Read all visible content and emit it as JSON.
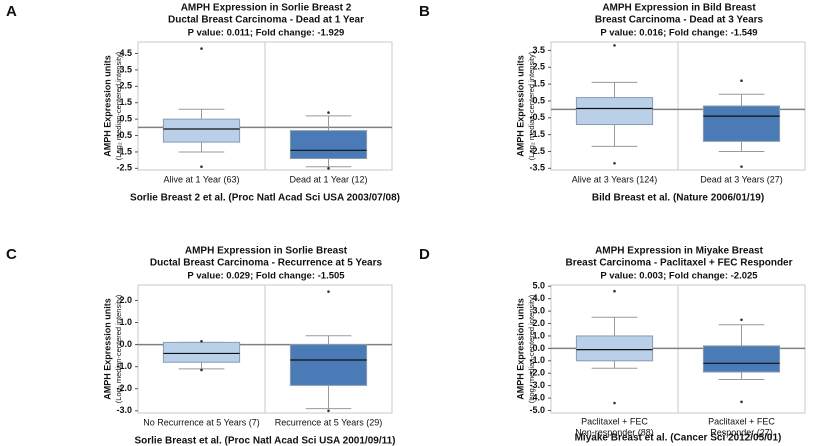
{
  "chart_data": [
    {
      "type": "box",
      "panel": "A",
      "title": "AMPH Expression in Sorlie Breast 2",
      "subtitle": "Ductal Breast Carcinoma - Dead at 1 Year",
      "stats": "P value: 0.011;  Fold change: -1.929",
      "ylabel": "AMPH Expression units",
      "ylabel2": "(Log₂ median-centered intensity)",
      "footer": "Sorlie Breast 2 et al. (Proc Natl Acad Sci USA 2003/07/08)",
      "categories": [
        "Alive at 1 Year (63)",
        "Dead at 1 Year (12)"
      ],
      "ylim": [
        -2.6,
        5.2
      ],
      "yticks": [
        4.5,
        3.5,
        2.5,
        1.5,
        0.5,
        -0.5,
        -1.5,
        -2.5
      ],
      "refline": 0,
      "boxes": [
        {
          "color": "#b9d0e8",
          "whisker_low": -1.5,
          "q1": -0.9,
          "median": -0.1,
          "q3": 0.5,
          "whisker_high": 1.1,
          "outliers": [
            4.8,
            -2.4
          ]
        },
        {
          "color": "#4a7bb7",
          "whisker_low": -2.4,
          "q1": -1.9,
          "median": -1.4,
          "q3": -0.2,
          "whisker_high": 0.7,
          "outliers": [
            0.9,
            -2.5
          ]
        }
      ]
    },
    {
      "type": "box",
      "panel": "B",
      "title": "AMPH Expression in Bild Breast",
      "subtitle": "Breast Carcinoma - Dead at 3 Years",
      "stats": "P value: 0.016;  Fold change: -1.549",
      "ylabel": "AMPH Expression units",
      "ylabel2": "(Log₂ median-centered intensity)",
      "footer": "Bild Breast et al. (Nature 2006/01/19)",
      "categories": [
        "Alive at 3 Years (124)",
        "Dead at 3 Years (27)"
      ],
      "ylim": [
        -3.6,
        4.0
      ],
      "yticks": [
        3.5,
        2.5,
        1.5,
        0.5,
        -0.5,
        -1.5,
        -2.5,
        -3.5
      ],
      "refline": 0,
      "boxes": [
        {
          "color": "#b9d0e8",
          "whisker_low": -2.2,
          "q1": -0.9,
          "median": 0.05,
          "q3": 0.7,
          "whisker_high": 1.6,
          "outliers": [
            3.8,
            -3.2
          ]
        },
        {
          "color": "#4a7bb7",
          "whisker_low": -2.5,
          "q1": -1.9,
          "median": -0.4,
          "q3": 0.2,
          "whisker_high": 0.9,
          "outliers": [
            1.7,
            -3.4
          ]
        }
      ]
    },
    {
      "type": "box",
      "panel": "C",
      "title": "AMPH Expression in Sorlie Breast",
      "subtitle": "Ductal Breast Carcinoma - Recurrence at 5 Years",
      "stats": "P value: 0.029;  Fold change: -1.505",
      "ylabel": "AMPH Expression units",
      "ylabel2": "(Log₂ median-centered intensity)",
      "footer": "Sorlie Breast et al. (Proc Natl Acad Sci USA 2001/09/11)",
      "categories": [
        "No Recurrence at 5 Years (7)",
        "Recurrence at 5 Years (29)"
      ],
      "ylim": [
        -3.1,
        2.7
      ],
      "yticks": [
        {
          "value": 2,
          "label": "2.0"
        },
        {
          "value": 1,
          "label": "1.0"
        },
        {
          "value": 0,
          "label": "0.0"
        },
        {
          "value": -1,
          "label": "-1.0"
        },
        {
          "value": -2,
          "label": "-2.0"
        },
        {
          "value": -3,
          "label": "-3.0"
        }
      ],
      "refline": 0,
      "boxes": [
        {
          "color": "#b9d0e8",
          "whisker_low": -1.1,
          "q1": -0.8,
          "median": -0.4,
          "q3": 0.1,
          "whisker_high": 0.1,
          "outliers": [
            0.15,
            -1.15
          ]
        },
        {
          "color": "#4a7bb7",
          "whisker_low": -2.9,
          "q1": -1.85,
          "median": -0.7,
          "q3": 0.0,
          "whisker_high": 0.4,
          "outliers": [
            2.4,
            -3.0
          ]
        }
      ]
    },
    {
      "type": "box",
      "panel": "D",
      "title": "AMPH Expression in Miyake Breast",
      "subtitle": "Breast Carcinoma - Paclitaxel + FEC Responder",
      "stats": "P value: 0.003;  Fold change: -2.025",
      "ylabel": "AMPH Expression units",
      "ylabel2": "(Log₂ median-centered intensity)",
      "footer": "Miyake Breast et al. (Cancer Sci 2012/05/01)",
      "categories": [
        [
          "Paclitaxel + FEC",
          "Non-responder (88)"
        ],
        [
          "Paclitaxel + FEC",
          "Responder (27)"
        ]
      ],
      "ylim": [
        -5.2,
        5.1
      ],
      "yticks": [
        {
          "value": 5,
          "label": "5.0"
        },
        {
          "value": 4,
          "label": "4.0"
        },
        {
          "value": 3,
          "label": "3.0"
        },
        {
          "value": 2,
          "label": "2.0"
        },
        {
          "value": 1,
          "label": "1.0"
        },
        {
          "value": 0,
          "label": "0.0"
        },
        {
          "value": -1,
          "label": "-1.0"
        },
        {
          "value": -2,
          "label": "-2.0"
        },
        {
          "value": -3,
          "label": "-3.0"
        },
        {
          "value": -4,
          "label": "-4.0"
        },
        {
          "value": -5,
          "label": "-5.0"
        }
      ],
      "refline": 0,
      "boxes": [
        {
          "color": "#b9d0e8",
          "whisker_low": -1.6,
          "q1": -1.0,
          "median": -0.1,
          "q3": 1.0,
          "whisker_high": 2.5,
          "outliers": [
            4.6,
            -4.4
          ]
        },
        {
          "color": "#4a7bb7",
          "whisker_low": -2.5,
          "q1": -1.9,
          "median": -1.2,
          "q3": 0.2,
          "whisker_high": 1.9,
          "outliers": [
            2.3,
            -4.3
          ]
        }
      ]
    }
  ]
}
